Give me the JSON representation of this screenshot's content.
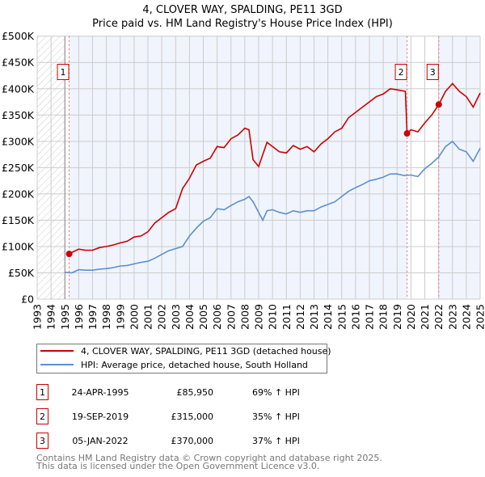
{
  "chart_data": {
    "type": "line",
    "title": "4, CLOVER WAY, SPALDING, PE11 3GD",
    "subtitle": "Price paid vs. HM Land Registry's House Price Index (HPI)",
    "xlim": [
      1993,
      2025
    ],
    "ylim": [
      0,
      500000
    ],
    "x_ticks": [
      "1993",
      "1994",
      "1995",
      "1996",
      "1997",
      "1998",
      "1999",
      "2000",
      "2001",
      "2002",
      "2003",
      "2004",
      "2005",
      "2006",
      "2007",
      "2008",
      "2009",
      "2010",
      "2011",
      "2012",
      "2013",
      "2014",
      "2015",
      "2016",
      "2017",
      "2018",
      "2019",
      "2020",
      "2021",
      "2022",
      "2023",
      "2024",
      "2025"
    ],
    "y_ticks": [
      {
        "v": 0,
        "label": "£0"
      },
      {
        "v": 50000,
        "label": "£50K"
      },
      {
        "v": 100000,
        "label": "£100K"
      },
      {
        "v": 150000,
        "label": "£150K"
      },
      {
        "v": 200000,
        "label": "£200K"
      },
      {
        "v": 250000,
        "label": "£250K"
      },
      {
        "v": 300000,
        "label": "£300K"
      },
      {
        "v": 350000,
        "label": "£350K"
      },
      {
        "v": 400000,
        "label": "£400K"
      },
      {
        "v": 450000,
        "label": "£450K"
      },
      {
        "v": 500000,
        "label": "£500K"
      }
    ],
    "grid": true,
    "series": [
      {
        "name": "4, CLOVER WAY, SPALDING, PE11 3GD (detached house)",
        "color": "#cc0000",
        "x": [
          1995.31,
          1995.6,
          1996,
          1996.5,
          1997,
          1997.5,
          1998,
          1998.5,
          1999,
          1999.5,
          2000,
          2000.5,
          2001,
          2001.5,
          2002,
          2002.5,
          2003,
          2003.5,
          2004,
          2004.5,
          2005,
          2005.5,
          2006,
          2006.5,
          2007,
          2007.5,
          2008,
          2008.3,
          2008.6,
          2009,
          2009.3,
          2009.6,
          2010,
          2010.5,
          2011,
          2011.5,
          2012,
          2012.5,
          2013,
          2013.5,
          2014,
          2014.5,
          2015,
          2015.5,
          2016,
          2016.5,
          2017,
          2017.5,
          2018,
          2018.5,
          2019,
          2019.6,
          2019.72,
          2020,
          2020.5,
          2021,
          2021.5,
          2022.01,
          2022.5,
          2023,
          2023.5,
          2024,
          2024.5,
          2025
        ],
        "y": [
          85950,
          90000,
          95000,
          93000,
          93000,
          98000,
          100000,
          103000,
          107000,
          110000,
          118000,
          120000,
          128000,
          145000,
          155000,
          165000,
          172000,
          210000,
          230000,
          255000,
          262000,
          268000,
          290000,
          288000,
          305000,
          312000,
          325000,
          322000,
          265000,
          252000,
          275000,
          298000,
          290000,
          280000,
          278000,
          292000,
          285000,
          290000,
          280000,
          295000,
          305000,
          318000,
          325000,
          345000,
          355000,
          365000,
          375000,
          385000,
          390000,
          400000,
          398000,
          395000,
          315000,
          322000,
          318000,
          335000,
          350000,
          370000,
          395000,
          410000,
          395000,
          385000,
          365000,
          392000
        ]
      },
      {
        "name": "HPI: Average price, detached house, South Holland",
        "color": "#5b8fd0",
        "x": [
          1995,
          1995.5,
          1996,
          1996.5,
          1997,
          1997.5,
          1998,
          1998.5,
          1999,
          1999.5,
          2000,
          2000.5,
          2001,
          2001.5,
          2002,
          2002.5,
          2003,
          2003.5,
          2004,
          2004.5,
          2005,
          2005.5,
          2006,
          2006.5,
          2007,
          2007.5,
          2008,
          2008.3,
          2008.6,
          2009,
          2009.3,
          2009.6,
          2010,
          2010.5,
          2011,
          2011.5,
          2012,
          2012.5,
          2013,
          2013.5,
          2014,
          2014.5,
          2015,
          2015.5,
          2016,
          2016.5,
          2017,
          2017.5,
          2018,
          2018.5,
          2019,
          2019.5,
          2020,
          2020.5,
          2021,
          2021.5,
          2022,
          2022.5,
          2023,
          2023.5,
          2024,
          2024.5,
          2025
        ],
        "y": [
          51000,
          50000,
          56000,
          55000,
          55000,
          57000,
          58000,
          60000,
          63000,
          64000,
          67000,
          70000,
          72000,
          78000,
          85000,
          92000,
          96000,
          100000,
          120000,
          135000,
          148000,
          155000,
          172000,
          170000,
          178000,
          185000,
          190000,
          195000,
          185000,
          165000,
          150000,
          168000,
          170000,
          165000,
          162000,
          168000,
          165000,
          168000,
          168000,
          175000,
          180000,
          185000,
          195000,
          205000,
          212000,
          218000,
          225000,
          228000,
          232000,
          238000,
          238000,
          235000,
          236000,
          233000,
          248000,
          258000,
          270000,
          290000,
          300000,
          285000,
          280000,
          262000,
          287000
        ]
      }
    ],
    "shaded_ranges": [
      [
        1995.31,
        2019.72
      ],
      [
        2022.01,
        2025
      ]
    ],
    "hatched_range": [
      1993,
      1995
    ],
    "sales": [
      {
        "num": "1",
        "date": "24-APR-1995",
        "price": "£85,950",
        "hpi": "69% ↑ HPI",
        "x": 1995.31,
        "y": 85950
      },
      {
        "num": "2",
        "date": "19-SEP-2019",
        "price": "£315,000",
        "hpi": "35% ↑ HPI",
        "x": 2019.72,
        "y": 315000
      },
      {
        "num": "3",
        "date": "05-JAN-2022",
        "price": "£370,000",
        "hpi": "37% ↑ HPI",
        "x": 2022.01,
        "y": 370000
      }
    ]
  },
  "footer": {
    "line1": "Contains HM Land Registry data © Crown copyright and database right 2025.",
    "line2": "This data is licensed under the Open Government Licence v3.0."
  }
}
